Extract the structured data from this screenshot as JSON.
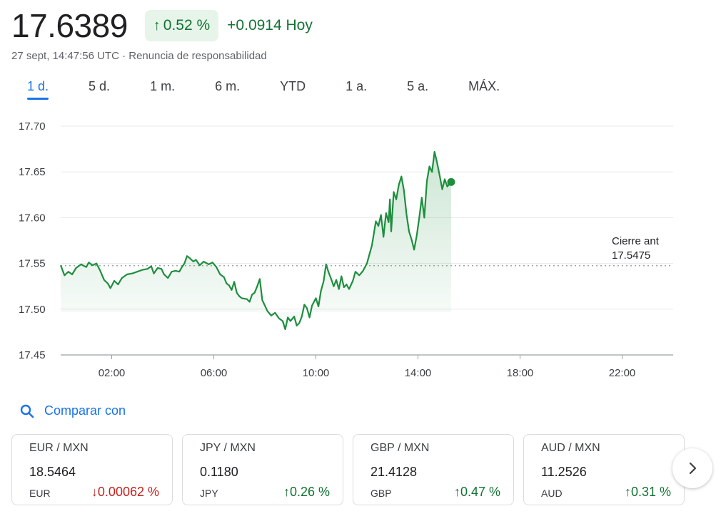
{
  "header": {
    "price": "17.6389",
    "pct_change": "0.52 %",
    "abs_change": "+0.0914 Hoy",
    "timestamp": "27 sept, 14:47:56 UTC · Renuncia de responsabilidad"
  },
  "tabs": [
    {
      "label": "1 d.",
      "active": true
    },
    {
      "label": "5 d."
    },
    {
      "label": "1 m."
    },
    {
      "label": "6 m."
    },
    {
      "label": "YTD"
    },
    {
      "label": "1 a."
    },
    {
      "label": "5 a."
    },
    {
      "label": "MÁX."
    }
  ],
  "chart_data": {
    "type": "area",
    "ylim": [
      17.45,
      17.7
    ],
    "yticks": [
      "17.70",
      "17.65",
      "17.60",
      "17.55",
      "17.50",
      "17.45"
    ],
    "xlim": [
      0,
      24
    ],
    "xticks": [
      {
        "label": "02:00",
        "h": 2
      },
      {
        "label": "06:00",
        "h": 6
      },
      {
        "label": "10:00",
        "h": 10
      },
      {
        "label": "14:00",
        "h": 14
      },
      {
        "label": "18:00",
        "h": 18
      },
      {
        "label": "22:00",
        "h": 22
      }
    ],
    "previous_close": {
      "label": "Cierre ant",
      "value": 17.5475,
      "value_label": "17.5475"
    },
    "line_color": "#1e8e3e",
    "series": [
      {
        "values": [
          [
            0.0,
            17.548
          ],
          [
            0.15,
            17.537
          ],
          [
            0.3,
            17.541
          ],
          [
            0.45,
            17.538
          ],
          [
            0.6,
            17.545
          ],
          [
            0.8,
            17.549
          ],
          [
            1.0,
            17.546
          ],
          [
            1.1,
            17.551
          ],
          [
            1.25,
            17.548
          ],
          [
            1.4,
            17.55
          ],
          [
            1.55,
            17.542
          ],
          [
            1.7,
            17.532
          ],
          [
            1.85,
            17.528
          ],
          [
            1.95,
            17.523
          ],
          [
            2.1,
            17.531
          ],
          [
            2.25,
            17.527
          ],
          [
            2.4,
            17.534
          ],
          [
            2.6,
            17.538
          ],
          [
            2.8,
            17.539
          ],
          [
            3.0,
            17.541
          ],
          [
            3.2,
            17.543
          ],
          [
            3.4,
            17.544
          ],
          [
            3.55,
            17.547
          ],
          [
            3.65,
            17.539
          ],
          [
            3.8,
            17.545
          ],
          [
            3.95,
            17.544
          ],
          [
            4.05,
            17.538
          ],
          [
            4.2,
            17.534
          ],
          [
            4.35,
            17.541
          ],
          [
            4.5,
            17.542
          ],
          [
            4.65,
            17.541
          ],
          [
            4.75,
            17.546
          ],
          [
            4.85,
            17.55
          ],
          [
            4.95,
            17.558
          ],
          [
            5.05,
            17.556
          ],
          [
            5.2,
            17.552
          ],
          [
            5.3,
            17.554
          ],
          [
            5.45,
            17.548
          ],
          [
            5.6,
            17.552
          ],
          [
            5.8,
            17.549
          ],
          [
            5.95,
            17.551
          ],
          [
            6.1,
            17.546
          ],
          [
            6.25,
            17.538
          ],
          [
            6.4,
            17.535
          ],
          [
            6.5,
            17.528
          ],
          [
            6.6,
            17.526
          ],
          [
            6.7,
            17.521
          ],
          [
            6.8,
            17.53
          ],
          [
            6.9,
            17.518
          ],
          [
            7.0,
            17.514
          ],
          [
            7.1,
            17.512
          ],
          [
            7.3,
            17.511
          ],
          [
            7.4,
            17.508
          ],
          [
            7.5,
            17.516
          ],
          [
            7.6,
            17.518
          ],
          [
            7.7,
            17.525
          ],
          [
            7.8,
            17.533
          ],
          [
            7.9,
            17.51
          ],
          [
            8.0,
            17.504
          ],
          [
            8.1,
            17.498
          ],
          [
            8.25,
            17.493
          ],
          [
            8.4,
            17.496
          ],
          [
            8.55,
            17.49
          ],
          [
            8.7,
            17.487
          ],
          [
            8.8,
            17.478
          ],
          [
            8.9,
            17.491
          ],
          [
            9.0,
            17.487
          ],
          [
            9.15,
            17.492
          ],
          [
            9.25,
            17.482
          ],
          [
            9.35,
            17.485
          ],
          [
            9.45,
            17.492
          ],
          [
            9.55,
            17.505
          ],
          [
            9.65,
            17.501
          ],
          [
            9.75,
            17.491
          ],
          [
            9.85,
            17.504
          ],
          [
            10.0,
            17.512
          ],
          [
            10.1,
            17.503
          ],
          [
            10.2,
            17.52
          ],
          [
            10.3,
            17.53
          ],
          [
            10.4,
            17.549
          ],
          [
            10.5,
            17.54
          ],
          [
            10.6,
            17.533
          ],
          [
            10.7,
            17.525
          ],
          [
            10.8,
            17.532
          ],
          [
            10.9,
            17.522
          ],
          [
            11.0,
            17.536
          ],
          [
            11.1,
            17.524
          ],
          [
            11.2,
            17.527
          ],
          [
            11.3,
            17.522
          ],
          [
            11.45,
            17.531
          ],
          [
            11.55,
            17.541
          ],
          [
            11.7,
            17.537
          ],
          [
            11.85,
            17.542
          ],
          [
            12.0,
            17.55
          ],
          [
            12.2,
            17.57
          ],
          [
            12.35,
            17.596
          ],
          [
            12.45,
            17.591
          ],
          [
            12.55,
            17.603
          ],
          [
            12.65,
            17.579
          ],
          [
            12.75,
            17.605
          ],
          [
            12.85,
            17.595
          ],
          [
            12.9,
            17.62
          ],
          [
            12.95,
            17.585
          ],
          [
            13.05,
            17.628
          ],
          [
            13.15,
            17.62
          ],
          [
            13.25,
            17.636
          ],
          [
            13.35,
            17.645
          ],
          [
            13.45,
            17.63
          ],
          [
            13.55,
            17.604
          ],
          [
            13.65,
            17.585
          ],
          [
            13.75,
            17.576
          ],
          [
            13.85,
            17.565
          ],
          [
            13.95,
            17.58
          ],
          [
            14.05,
            17.6
          ],
          [
            14.15,
            17.622
          ],
          [
            14.25,
            17.6
          ],
          [
            14.35,
            17.64
          ],
          [
            14.45,
            17.656
          ],
          [
            14.55,
            17.65
          ],
          [
            14.65,
            17.672
          ],
          [
            14.75,
            17.66
          ],
          [
            14.85,
            17.646
          ],
          [
            14.95,
            17.631
          ],
          [
            15.05,
            17.642
          ],
          [
            15.15,
            17.634
          ],
          [
            15.3,
            17.639
          ]
        ]
      }
    ]
  },
  "compare": {
    "label": "Comparar con"
  },
  "cards": [
    {
      "pair": "EUR / MXN",
      "value": "18.5464",
      "currency": "EUR",
      "change": "0.00062 %",
      "direction": "down"
    },
    {
      "pair": "JPY / MXN",
      "value": "0.1180",
      "currency": "JPY",
      "change": "0.26 %",
      "direction": "up"
    },
    {
      "pair": "GBP / MXN",
      "value": "21.4128",
      "currency": "GBP",
      "change": "0.47 %",
      "direction": "up"
    },
    {
      "pair": "AUD / MXN",
      "value": "11.2526",
      "currency": "AUD",
      "change": "0.31 %",
      "direction": "up"
    }
  ],
  "icons": {
    "compare": "search-icon",
    "next": "chevron-right-icon",
    "up": "arrow-up-icon",
    "down": "arrow-down-icon"
  }
}
